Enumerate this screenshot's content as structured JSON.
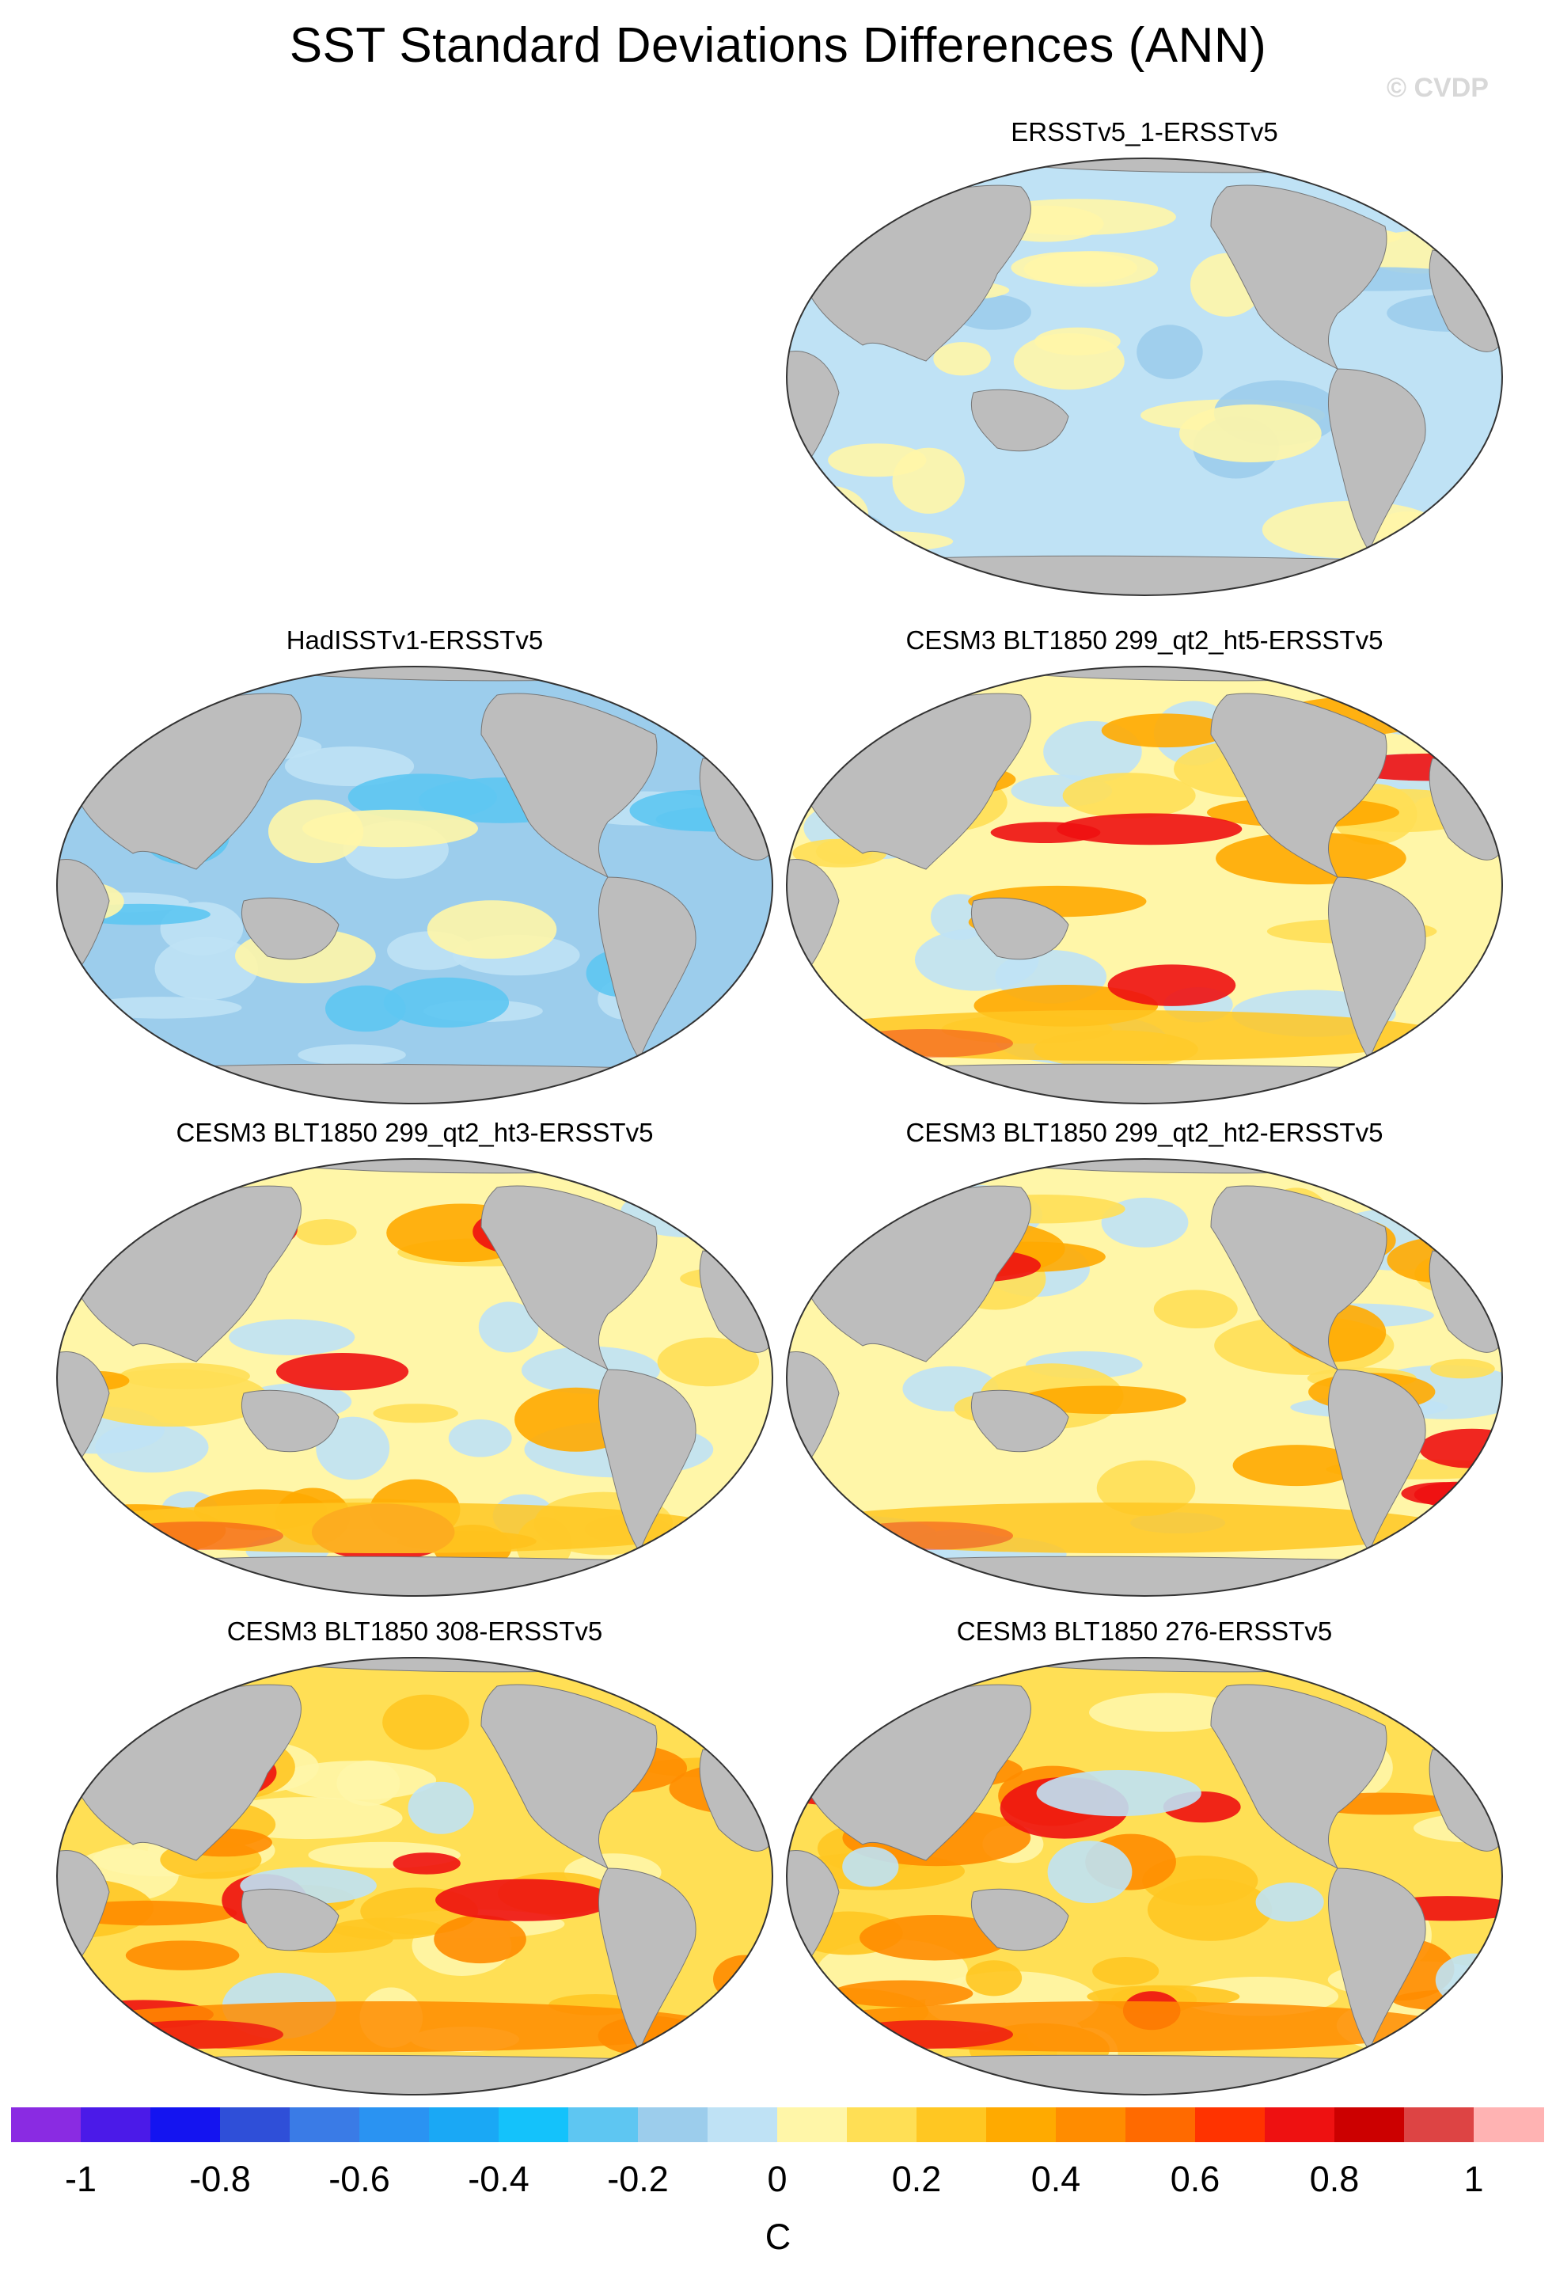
{
  "title": "SST Standard Deviations Differences (ANN)",
  "watermark": "© CVDP",
  "panels": [
    {
      "name": "ERSSTv5_1-ERSSTv5",
      "style": "weak"
    },
    {
      "name": "HadISSTv1-ERSSTv5",
      "style": "negative"
    },
    {
      "name": "CESM3 BLT1850 299_qt2_ht5-ERSSTv5",
      "style": "mixed"
    },
    {
      "name": "CESM3 BLT1850 299_qt2_ht3-ERSSTv5",
      "style": "mixed"
    },
    {
      "name": "CESM3 BLT1850 299_qt2_ht2-ERSSTv5",
      "style": "mixed"
    },
    {
      "name": "CESM3 BLT1850 308-ERSSTv5",
      "style": "positive"
    },
    {
      "name": "CESM3 BLT1850 276-ERSSTv5",
      "style": "positive"
    }
  ],
  "colorbar": {
    "colors": [
      "#8a2be2",
      "#4b1ae8",
      "#1414f0",
      "#2f4fd8",
      "#3a7be6",
      "#2a93f2",
      "#1aa8f5",
      "#14c2fb",
      "#5ec6f2",
      "#9ccdec",
      "#bfe2f5",
      "#fff6a8",
      "#ffdf55",
      "#ffc722",
      "#ffaa00",
      "#ff8c00",
      "#ff6a00",
      "#ff3300",
      "#ee1111",
      "#cc0000",
      "#dd4444",
      "#ffb3b3"
    ],
    "labels": [
      "-1",
      "-0.8",
      "-0.6",
      "-0.4",
      "-0.2",
      "0",
      "0.2",
      "0.4",
      "0.6",
      "0.8",
      "1"
    ],
    "unit": "C"
  }
}
